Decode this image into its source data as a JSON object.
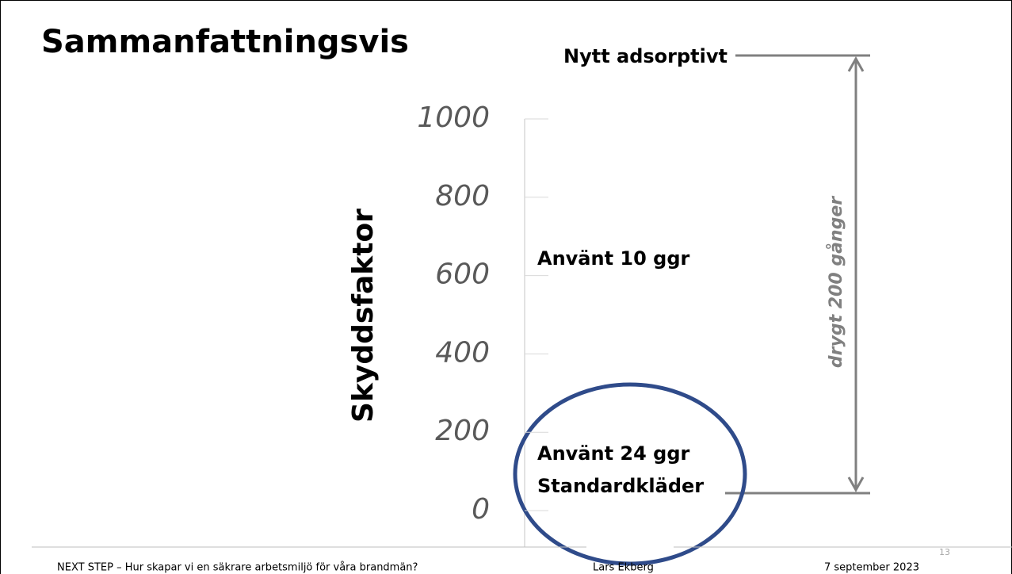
{
  "chart_data": {
    "type": "scale",
    "title": "Sammanfattningsvis",
    "y_label": "Skyddsfaktor",
    "ylim": [
      0,
      1000
    ],
    "yticks": [
      0,
      200,
      400,
      600,
      800,
      1000
    ],
    "annotations": [
      "Nytt adsorptivt",
      "Använt 10 ggr",
      "Använt 24 ggr",
      "Standardkläder",
      "drygt 200 gånger"
    ]
  },
  "footer": {
    "text": "NEXT STEP – Hur skapar vi en säkrare arbetsmiljö för våra brandmän?",
    "author": "Lars Ekberg",
    "date": "7 september 2023",
    "page": "13"
  }
}
